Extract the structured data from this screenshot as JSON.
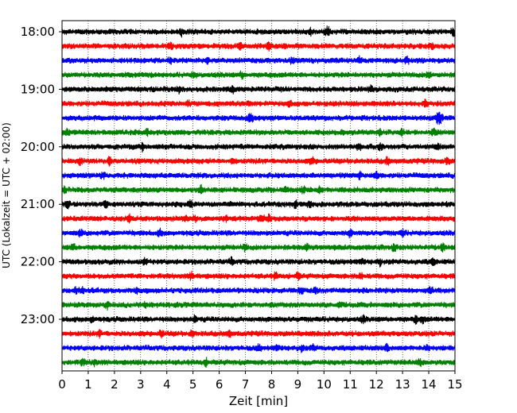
{
  "chart_data": {
    "type": "line",
    "title": "",
    "xlabel": "Zeit  [min]",
    "ylabel": "UTC (Lokalzeit = UTC + 02:00)",
    "xlim": [
      0,
      15
    ],
    "x_ticks": [
      "0",
      "1",
      "2",
      "3",
      "4",
      "5",
      "6",
      "7",
      "8",
      "9",
      "10",
      "11",
      "12",
      "13",
      "14",
      "15"
    ],
    "y_tick_labels": [
      "18:00",
      "19:00",
      "20:00",
      "21:00",
      "22:00",
      "23:00"
    ],
    "y_tick_traces": [
      0,
      4,
      8,
      12,
      16,
      20
    ],
    "grid": "vertical dotted lines at each minute",
    "trace_colors": [
      "#000000",
      "#ff0000",
      "#0000ff",
      "#008000"
    ],
    "traces": [
      {
        "start": "18:00",
        "color": "#000000"
      },
      {
        "start": "18:15",
        "color": "#ff0000"
      },
      {
        "start": "18:30",
        "color": "#0000ff"
      },
      {
        "start": "18:45",
        "color": "#008000"
      },
      {
        "start": "19:00",
        "color": "#000000"
      },
      {
        "start": "19:15",
        "color": "#ff0000"
      },
      {
        "start": "19:30",
        "color": "#0000ff"
      },
      {
        "start": "19:45",
        "color": "#008000"
      },
      {
        "start": "20:00",
        "color": "#000000"
      },
      {
        "start": "20:15",
        "color": "#ff0000"
      },
      {
        "start": "20:30",
        "color": "#0000ff"
      },
      {
        "start": "20:45",
        "color": "#008000"
      },
      {
        "start": "21:00",
        "color": "#000000"
      },
      {
        "start": "21:15",
        "color": "#ff0000"
      },
      {
        "start": "21:30",
        "color": "#0000ff"
      },
      {
        "start": "21:45",
        "color": "#008000"
      },
      {
        "start": "22:00",
        "color": "#000000"
      },
      {
        "start": "22:15",
        "color": "#ff0000"
      },
      {
        "start": "22:30",
        "color": "#0000ff"
      },
      {
        "start": "22:45",
        "color": "#008000"
      },
      {
        "start": "23:00",
        "color": "#000000"
      },
      {
        "start": "23:15",
        "color": "#ff0000"
      },
      {
        "start": "23:30",
        "color": "#0000ff"
      },
      {
        "start": "23:45",
        "color": "#008000"
      }
    ]
  }
}
